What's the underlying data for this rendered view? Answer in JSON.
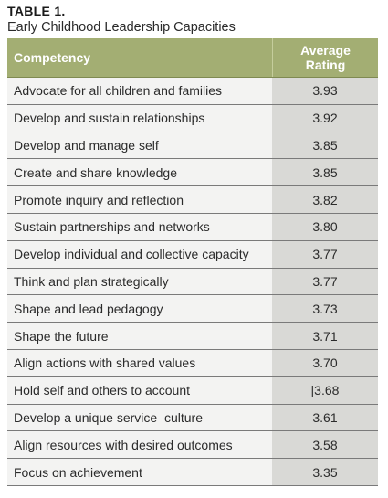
{
  "table_label": "TABLE 1.",
  "table_title": "Early Childhood Leadership Capacities",
  "header": {
    "competency": "Competency",
    "rating_line1": "Average",
    "rating_line2": "Rating",
    "bg_color": "#a3ae73"
  },
  "rows": [
    {
      "competency": "Advocate for all children and families",
      "rating": "3.93"
    },
    {
      "competency": "Develop and sustain relationships",
      "rating": "3.92"
    },
    {
      "competency": "Develop and manage self",
      "rating": "3.85"
    },
    {
      "competency": "Create and share knowledge",
      "rating": "3.85"
    },
    {
      "competency": "Promote inquiry and reflection",
      "rating": "3.82"
    },
    {
      "competency": "Sustain partnerships and networks",
      "rating": "3.80"
    },
    {
      "competency": "Develop individual and collective capacity",
      "rating": "3.77"
    },
    {
      "competency": "Think and plan strategically",
      "rating": "3.77"
    },
    {
      "competency": "Shape and lead pedagogy",
      "rating": "3.73"
    },
    {
      "competency": "Shape the future",
      "rating": "3.71"
    },
    {
      "competency": "Align actions with shared values",
      "rating": "3.70"
    },
    {
      "competency": "Hold self and others to account",
      "rating": "|3.68"
    },
    {
      "competency": "Develop a unique service  culture",
      "rating": "3.61"
    },
    {
      "competency": "Align resources with desired outcomes",
      "rating": "3.58"
    },
    {
      "competency": "Focus on achievement",
      "rating": "3.35"
    }
  ]
}
